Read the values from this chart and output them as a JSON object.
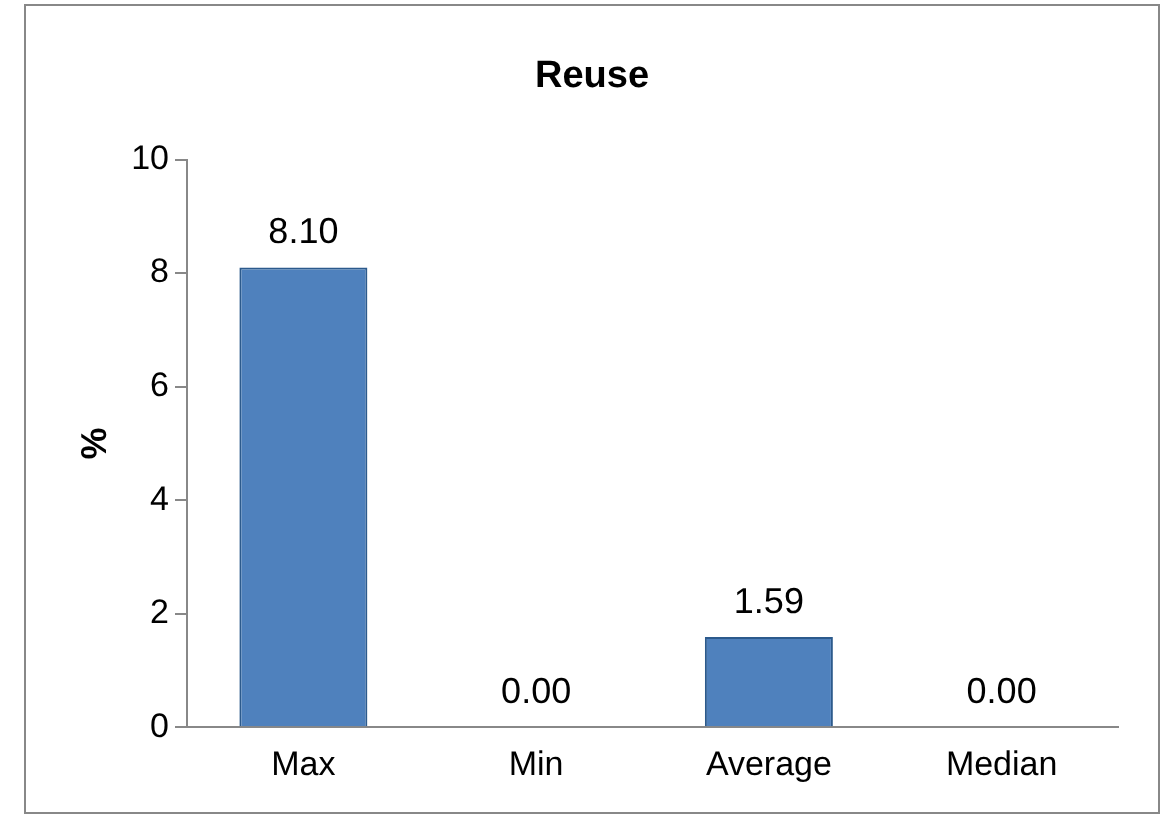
{
  "chart_data": {
    "type": "bar",
    "title": "Reuse",
    "ylabel": "%",
    "categories": [
      "Max",
      "Min",
      "Average",
      "Median"
    ],
    "values": [
      8.1,
      0,
      1.59,
      0
    ],
    "value_labels": [
      "8.10",
      "0.00",
      "1.59",
      "0.00"
    ],
    "color": "#4f81bd",
    "ylim": [
      0,
      10
    ],
    "yticks": [
      0,
      2,
      4,
      6,
      8,
      10
    ],
    "grid": false,
    "legend": false
  }
}
